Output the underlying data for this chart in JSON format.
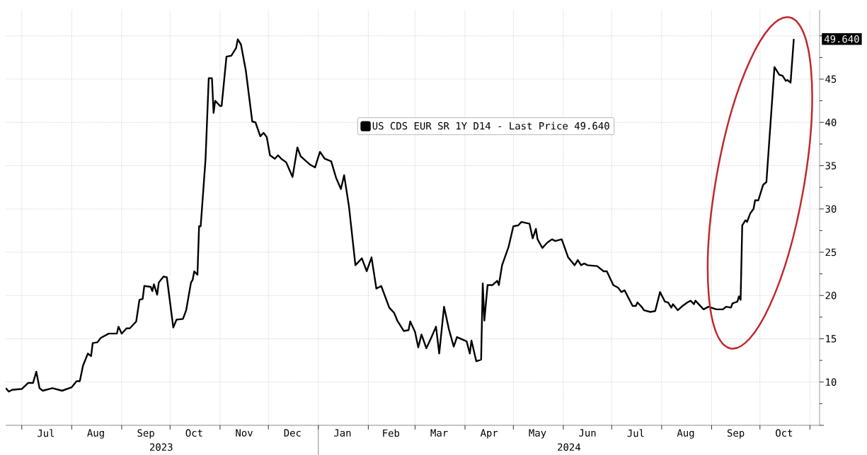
{
  "chart_data": {
    "type": "line",
    "x": [
      "2023-06-21",
      "2023-06-23",
      "2023-06-25",
      "2023-07-01",
      "2023-07-05",
      "2023-07-08",
      "2023-07-10",
      "2023-07-12",
      "2023-07-14",
      "2023-07-20",
      "2023-07-26",
      "2023-08-01",
      "2023-08-04",
      "2023-08-06",
      "2023-08-08",
      "2023-08-11",
      "2023-08-13",
      "2023-08-14",
      "2023-08-17",
      "2023-08-19",
      "2023-08-24",
      "2023-08-29",
      "2023-08-30",
      "2023-09-01",
      "2023-09-04",
      "2023-09-06",
      "2023-09-10",
      "2023-09-12",
      "2023-09-14",
      "2023-09-15",
      "2023-09-19",
      "2023-09-20",
      "2023-09-21",
      "2023-09-23",
      "2023-09-24",
      "2023-09-27",
      "2023-09-29",
      "2023-10-03",
      "2023-10-05",
      "2023-10-09",
      "2023-10-11",
      "2023-10-14",
      "2023-10-15",
      "2023-10-16",
      "2023-10-18",
      "2023-10-19",
      "2023-10-20",
      "2023-10-23",
      "2023-10-25",
      "2023-10-27",
      "2023-10-28",
      "2023-10-29",
      "2023-11-01",
      "2023-11-02",
      "2023-11-05",
      "2023-11-08",
      "2023-11-11",
      "2023-11-12",
      "2023-11-14",
      "2023-11-16",
      "2023-11-17",
      "2023-11-21",
      "2023-11-23",
      "2023-11-26",
      "2023-11-28",
      "2023-11-30",
      "2023-12-02",
      "2023-12-05",
      "2023-12-07",
      "2023-12-09",
      "2023-12-12",
      "2023-12-16",
      "2023-12-19",
      "2023-12-21",
      "2023-12-27",
      "2023-12-30",
      "2024-01-02",
      "2024-01-05",
      "2024-01-09",
      "2024-01-12",
      "2024-01-15",
      "2024-01-17",
      "2024-01-20",
      "2024-01-24",
      "2024-01-28",
      "2024-01-31",
      "2024-02-03",
      "2024-02-06",
      "2024-02-09",
      "2024-02-12",
      "2024-02-14",
      "2024-02-17",
      "2024-02-19",
      "2024-02-23",
      "2024-02-26",
      "2024-02-27",
      "2024-03-01",
      "2024-03-03",
      "2024-03-05",
      "2024-03-08",
      "2024-03-11",
      "2024-03-14",
      "2024-03-16",
      "2024-03-19",
      "2024-03-22",
      "2024-03-25",
      "2024-03-27",
      "2024-04-02",
      "2024-04-04",
      "2024-04-05",
      "2024-04-08",
      "2024-04-11",
      "2024-04-12",
      "2024-04-13",
      "2024-04-15",
      "2024-04-18",
      "2024-04-21",
      "2024-04-22",
      "2024-04-24",
      "2024-04-28",
      "2024-05-01",
      "2024-05-04",
      "2024-05-06",
      "2024-05-11",
      "2024-05-13",
      "2024-05-15",
      "2024-05-16",
      "2024-05-19",
      "2024-05-22",
      "2024-05-25",
      "2024-05-27",
      "2024-05-31",
      "2024-06-04",
      "2024-06-08",
      "2024-06-10",
      "2024-06-12",
      "2024-06-14",
      "2024-06-16",
      "2024-06-22",
      "2024-06-26",
      "2024-06-28",
      "2024-07-02",
      "2024-07-05",
      "2024-07-07",
      "2024-07-09",
      "2024-07-14",
      "2024-07-16",
      "2024-07-17",
      "2024-07-20",
      "2024-07-21",
      "2024-07-25",
      "2024-07-28",
      "2024-07-31",
      "2024-08-03",
      "2024-08-05",
      "2024-08-07",
      "2024-08-08",
      "2024-08-11",
      "2024-08-14",
      "2024-08-17",
      "2024-08-19",
      "2024-08-21",
      "2024-08-22",
      "2024-08-27",
      "2024-08-30",
      "2024-09-04",
      "2024-09-08",
      "2024-09-10",
      "2024-09-13",
      "2024-09-14",
      "2024-09-17",
      "2024-09-18",
      "2024-09-19",
      "2024-09-20",
      "2024-09-22",
      "2024-09-23",
      "2024-09-25",
      "2024-09-27",
      "2024-09-28",
      "2024-09-30",
      "2024-10-03",
      "2024-10-05",
      "2024-10-10",
      "2024-10-13",
      "2024-10-15",
      "2024-10-17",
      "2024-10-18",
      "2024-10-20",
      "2024-10-22"
    ],
    "series": [
      {
        "name": "US CDS EUR SR 1Y D14 - Last Price 49.640",
        "color": "#000000",
        "values": [
          9.3,
          8.9,
          9.1,
          9.2,
          9.9,
          9.9,
          11.2,
          9.3,
          9.0,
          9.3,
          9.0,
          9.4,
          10.1,
          10.1,
          11.9,
          13.3,
          13.0,
          14.5,
          14.6,
          15.1,
          15.6,
          15.6,
          16.4,
          15.6,
          16.2,
          16.2,
          17.0,
          19.5,
          19.6,
          21.1,
          21.0,
          20.5,
          21.3,
          20.1,
          21.5,
          22.2,
          22.1,
          16.3,
          17.2,
          17.3,
          18.3,
          21.5,
          21.8,
          22.8,
          22.4,
          28.0,
          28.0,
          35.7,
          45.1,
          45.1,
          41.1,
          42.5,
          41.9,
          41.9,
          47.6,
          47.7,
          48.6,
          49.6,
          49.0,
          47.0,
          46.0,
          40.1,
          40.0,
          38.4,
          38.8,
          38.3,
          36.2,
          35.8,
          36.2,
          35.8,
          35.4,
          33.7,
          37.1,
          36.1,
          35.1,
          34.8,
          36.6,
          35.8,
          35.5,
          33.6,
          32.3,
          33.9,
          30.3,
          23.5,
          24.3,
          22.8,
          24.4,
          20.8,
          21.1,
          19.6,
          18.6,
          18.0,
          17.1,
          15.9,
          16.0,
          17.0,
          15.8,
          14.0,
          15.5,
          13.9,
          15.1,
          16.4,
          13.3,
          18.7,
          16.1,
          14.1,
          15.2,
          14.7,
          13.3,
          14.8,
          12.4,
          12.6,
          21.4,
          17.1,
          21.2,
          21.2,
          21.7,
          21.2,
          23.5,
          25.6,
          28.0,
          28.1,
          28.5,
          28.3,
          26.6,
          27.7,
          26.5,
          25.5,
          26.1,
          26.5,
          26.3,
          26.5,
          24.4,
          23.5,
          24.1,
          23.5,
          23.7,
          23.5,
          23.4,
          22.8,
          22.8,
          21.2,
          20.9,
          20.4,
          20.6,
          18.8,
          18.8,
          19.2,
          18.6,
          18.3,
          18.1,
          18.2,
          20.4,
          19.3,
          19.2,
          18.6,
          19.0,
          18.3,
          18.8,
          19.2,
          19.4,
          19.0,
          19.4,
          18.4,
          18.7,
          18.4,
          18.4,
          18.7,
          18.6,
          19.1,
          19.3,
          19.9,
          19.5,
          28.1,
          28.7,
          28.5,
          29.5,
          30.0,
          31.0,
          31.0,
          32.8,
          33.1,
          46.4,
          45.5,
          45.4,
          44.8,
          44.9,
          44.6,
          49.64
        ]
      }
    ],
    "xlim": [
      "2023-06-21",
      "2024-11-07"
    ],
    "xticks": [
      {
        "value": "2023-07-01",
        "label": null
      },
      {
        "value": "2023-07-16",
        "label": "Jul"
      },
      {
        "value": "2023-08-01",
        "label": null
      },
      {
        "value": "2023-08-16",
        "label": "Aug"
      },
      {
        "value": "2023-09-01",
        "label": null
      },
      {
        "value": "2023-09-16",
        "label": "Sep"
      },
      {
        "value": "2023-10-01",
        "label": null
      },
      {
        "value": "2023-10-16",
        "label": "Oct"
      },
      {
        "value": "2023-11-01",
        "label": null
      },
      {
        "value": "2023-11-16",
        "label": "Nov"
      },
      {
        "value": "2023-12-01",
        "label": null
      },
      {
        "value": "2023-12-16",
        "label": "Dec"
      },
      {
        "value": "2024-01-01",
        "label": null
      },
      {
        "value": "2024-01-16",
        "label": "Jan"
      },
      {
        "value": "2024-02-01",
        "label": null
      },
      {
        "value": "2024-02-15",
        "label": "Feb"
      },
      {
        "value": "2024-03-01",
        "label": null
      },
      {
        "value": "2024-03-16",
        "label": "Mar"
      },
      {
        "value": "2024-04-01",
        "label": null
      },
      {
        "value": "2024-04-16",
        "label": "Apr"
      },
      {
        "value": "2024-05-01",
        "label": null
      },
      {
        "value": "2024-05-16",
        "label": "May"
      },
      {
        "value": "2024-06-01",
        "label": null
      },
      {
        "value": "2024-06-16",
        "label": "Jun"
      },
      {
        "value": "2024-07-01",
        "label": null
      },
      {
        "value": "2024-07-16",
        "label": "Jul"
      },
      {
        "value": "2024-08-01",
        "label": null
      },
      {
        "value": "2024-08-16",
        "label": "Aug"
      },
      {
        "value": "2024-09-01",
        "label": null
      },
      {
        "value": "2024-09-16",
        "label": "Sep"
      },
      {
        "value": "2024-10-01",
        "label": null
      },
      {
        "value": "2024-10-16",
        "label": "Oct"
      },
      {
        "value": "2024-11-01",
        "label": null
      }
    ],
    "ylim": [
      5,
      53
    ],
    "yticks": [
      {
        "value": 5,
        "label": null
      },
      10,
      15,
      20,
      25,
      30,
      35,
      40,
      45,
      {
        "value": 50,
        "label": null
      }
    ],
    "grid": true,
    "legend": "top",
    "annotations": [
      "2023",
      "2024",
      "49.640"
    ]
  }
}
